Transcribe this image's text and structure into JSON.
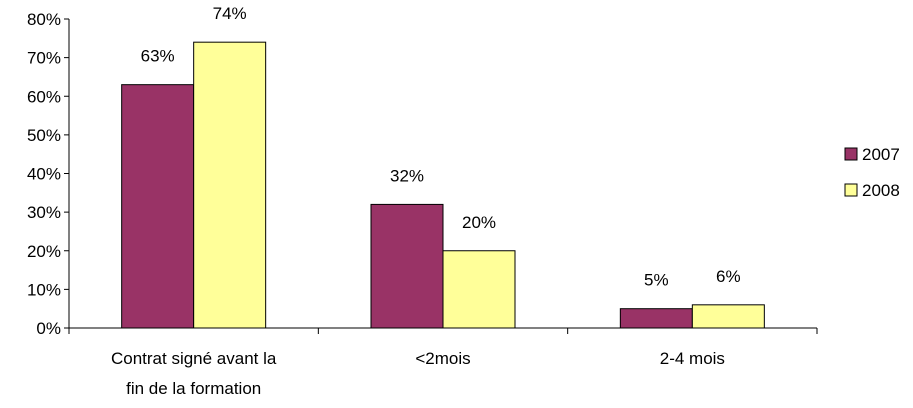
{
  "chart_data": {
    "type": "bar",
    "categories": [
      [
        "Contrat signé avant la",
        "fin de la formation"
      ],
      [
        "<2mois"
      ],
      [
        "2-4 mois"
      ]
    ],
    "series": [
      {
        "name": "2007",
        "values": [
          63,
          32,
          5
        ],
        "labels": [
          "63%",
          "32%",
          "5%"
        ],
        "color": "#993366"
      },
      {
        "name": "2008",
        "values": [
          74,
          20,
          6
        ],
        "labels": [
          "74%",
          "20%",
          "6%"
        ],
        "color": "#FFFF99"
      }
    ],
    "yticks": [
      "0%",
      "10%",
      "20%",
      "30%",
      "40%",
      "50%",
      "60%",
      "70%",
      "80%"
    ],
    "ylim": [
      0,
      80
    ],
    "unit": "%",
    "grid": false,
    "legend": "right"
  }
}
